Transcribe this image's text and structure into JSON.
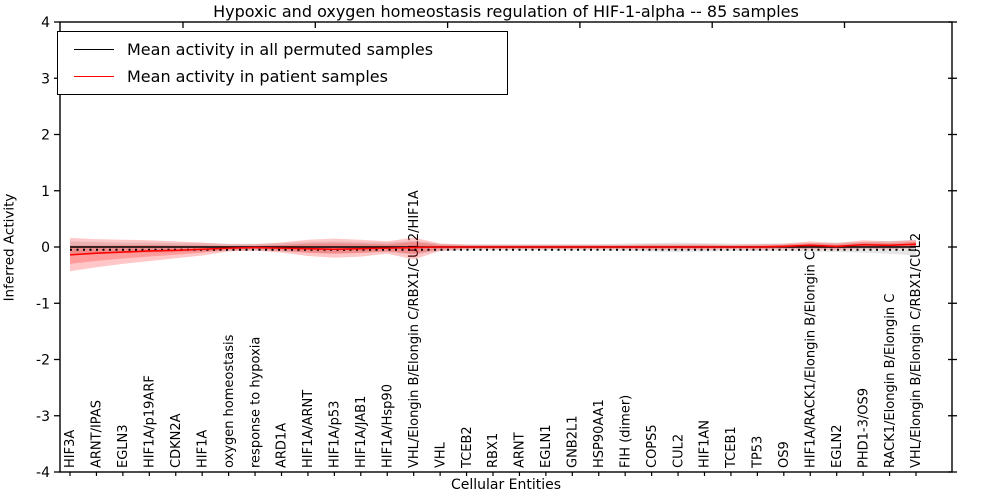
{
  "chart_data": {
    "type": "line",
    "title": "Hypoxic and oxygen homeostasis regulation of HIF-1-alpha -- 85 samples",
    "xlabel": "Cellular Entities",
    "ylabel": "Inferred Activity",
    "ylim": [
      -4,
      4
    ],
    "grid": false,
    "legend_position": "upper left",
    "yticks": [
      {
        "v": -4,
        "label": "-4"
      },
      {
        "v": -3,
        "label": "-3"
      },
      {
        "v": -2,
        "label": "-2"
      },
      {
        "v": -1,
        "label": "-1"
      },
      {
        "v": 0,
        "label": "0"
      },
      {
        "v": 1,
        "label": "1"
      },
      {
        "v": 2,
        "label": "2"
      },
      {
        "v": 3,
        "label": "3"
      },
      {
        "v": 4,
        "label": "4"
      }
    ],
    "categories": [
      "HIF3A",
      "ARNT/IPAS",
      "EGLN3",
      "HIF1A/p19ARF",
      "CDKN2A",
      "HIF1A",
      "oxygen homeostasis",
      "response to hypoxia",
      "ARD1A",
      "HIF1A/ARNT",
      "HIF1A/p53",
      "HIF1A/JAB1",
      "HIF1A/Hsp90",
      "VHL/Elongin B/Elongin C/RBX1/CUL2/HIF1A",
      "VHL",
      "TCEB2",
      "RBX1",
      "ARNT",
      "EGLN1",
      "GNB2L1",
      "HSP90AA1",
      "FIH (dimer)",
      "COPS5",
      "CUL2",
      "HIF1AN",
      "TCEB1",
      "TP53",
      "OS9",
      "HIF1A/RACK1/Elongin B/Elongin C",
      "EGLN2",
      "PHD1-3/OS9",
      "RACK1/Elongin B/Elongin C",
      "VHL/Elongin B/Elongin C/RBX1/CUL2"
    ],
    "series": [
      {
        "name": "Mean activity in all permuted samples",
        "color": "#000000",
        "band_color": "rgba(0,0,0,0.10)",
        "values": [
          0,
          0,
          0,
          0,
          0,
          0,
          0,
          0,
          0,
          0,
          0,
          0,
          0,
          0,
          0,
          0,
          0,
          0,
          0,
          0,
          0,
          0,
          0,
          0,
          0,
          0,
          0,
          0,
          0,
          0,
          0,
          0,
          0
        ],
        "band_lo": [
          -0.12,
          -0.11,
          -0.1,
          -0.1,
          -0.09,
          -0.08,
          -0.07,
          -0.07,
          -0.08,
          -0.1,
          -0.11,
          -0.1,
          -0.09,
          -0.13,
          -0.07,
          -0.06,
          -0.06,
          -0.06,
          -0.06,
          -0.06,
          -0.06,
          -0.07,
          -0.08,
          -0.09,
          -0.08,
          -0.07,
          -0.07,
          -0.07,
          -0.08,
          -0.09,
          -0.1,
          -0.12,
          -0.15
        ],
        "band_hi": [
          0.1,
          0.09,
          0.08,
          0.08,
          0.07,
          0.07,
          0.06,
          0.06,
          0.07,
          0.09,
          0.1,
          0.09,
          0.08,
          0.11,
          0.06,
          0.05,
          0.05,
          0.05,
          0.05,
          0.05,
          0.05,
          0.06,
          0.07,
          0.08,
          0.07,
          0.06,
          0.06,
          0.06,
          0.07,
          0.08,
          0.09,
          0.11,
          0.12
        ]
      },
      {
        "name": "Mean activity in patient samples",
        "color": "#ff0000",
        "band_color": "rgba(255,0,0,0.22)",
        "values": [
          -0.14,
          -0.11,
          -0.09,
          -0.07,
          -0.06,
          -0.04,
          -0.02,
          -0.01,
          -0.02,
          -0.03,
          -0.04,
          -0.03,
          -0.02,
          -0.01,
          0.0,
          0.0,
          0.0,
          0.0,
          0.0,
          0.0,
          0.0,
          0.0,
          0.0,
          0.0,
          0.0,
          0.0,
          0.0,
          0.01,
          0.03,
          0.01,
          0.04,
          0.03,
          0.05
        ],
        "band_lo": [
          -0.43,
          -0.36,
          -0.3,
          -0.25,
          -0.2,
          -0.15,
          -0.08,
          -0.06,
          -0.1,
          -0.16,
          -0.19,
          -0.17,
          -0.12,
          -0.22,
          -0.07,
          -0.04,
          -0.04,
          -0.04,
          -0.04,
          -0.04,
          -0.04,
          -0.04,
          -0.05,
          -0.05,
          -0.05,
          -0.04,
          -0.05,
          -0.04,
          -0.04,
          -0.05,
          -0.03,
          -0.04,
          -0.02
        ],
        "band_hi": [
          0.16,
          0.14,
          0.13,
          0.12,
          0.1,
          0.08,
          0.05,
          0.05,
          0.08,
          0.13,
          0.15,
          0.13,
          0.1,
          0.17,
          0.06,
          0.04,
          0.04,
          0.04,
          0.04,
          0.04,
          0.04,
          0.04,
          0.05,
          0.05,
          0.05,
          0.04,
          0.05,
          0.06,
          0.1,
          0.07,
          0.12,
          0.1,
          0.13
        ]
      }
    ]
  }
}
